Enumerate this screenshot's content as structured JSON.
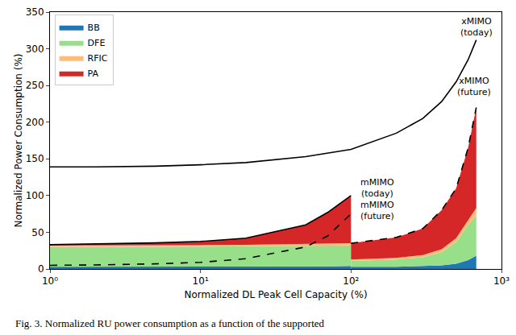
{
  "chart_data": {
    "type": "area",
    "stacked": true,
    "log": "x",
    "grid": false,
    "legend": "upper left",
    "xlabel": "Normalized DL Peak Cell Capacity (%)",
    "ylabel": "Normalized Power Consumption (%)",
    "caption": "Fig. 3. Normalized RU power consumption as a function of the supported",
    "xlim": [
      1,
      1000
    ],
    "ylim": [
      0,
      350
    ],
    "xticks": [
      {
        "value": 1,
        "label": "10⁰"
      },
      {
        "value": 10,
        "label": "10¹"
      },
      {
        "value": 100,
        "label": "10²"
      },
      {
        "value": 1000,
        "label": "10³"
      }
    ],
    "yticks": [
      0,
      50,
      100,
      150,
      200,
      250,
      300,
      350
    ],
    "x": [
      1,
      2,
      5,
      10,
      20,
      50,
      70,
      100,
      100,
      200,
      300,
      400,
      500,
      600,
      680
    ],
    "series": [
      {
        "name": "BB",
        "type": "area",
        "color": "#1f77b4",
        "values": [
          3,
          3,
          3,
          3,
          3,
          3.5,
          3.5,
          4,
          3,
          3,
          4,
          5,
          7,
          12,
          18
        ]
      },
      {
        "name": "DFE",
        "type": "area",
        "color": "#98df8a",
        "values": [
          27,
          27,
          27,
          27.5,
          28,
          28,
          28,
          28,
          8,
          10,
          12,
          18,
          30,
          48,
          55
        ]
      },
      {
        "name": "RFIC",
        "type": "area",
        "color": "#ffbb78",
        "values": [
          2,
          2,
          2,
          2,
          2,
          2.5,
          2.5,
          3,
          2,
          2,
          3,
          4,
          5,
          7,
          10
        ]
      },
      {
        "name": "PA",
        "type": "area",
        "color": "#d62728",
        "values": [
          1,
          2,
          3.5,
          5,
          9,
          26,
          43,
          65,
          22,
          28,
          36,
          53,
          68,
          98,
          137
        ]
      }
    ],
    "lines": [
      {
        "name": "xMIMO (today)",
        "type": "line",
        "color": "#000000",
        "line_style": "solid",
        "x": [
          1,
          2,
          5,
          10,
          20,
          50,
          100,
          200,
          300,
          400,
          500,
          600,
          680
        ],
        "values": [
          139,
          139,
          140,
          142,
          145,
          153,
          163,
          185,
          205,
          228,
          255,
          285,
          312
        ]
      },
      {
        "name": "xMIMO (future)",
        "type": "line",
        "color": "#000000",
        "line_style": "dashed",
        "x": [
          100,
          200,
          300,
          400,
          500,
          600,
          680
        ],
        "values": [
          35,
          43,
          55,
          80,
          110,
          165,
          220
        ]
      },
      {
        "name": "mMIMO (today)",
        "type": "line",
        "color": "#000000",
        "line_style": "solid",
        "x": [
          1,
          2,
          5,
          10,
          20,
          50,
          70,
          100
        ],
        "values": [
          33,
          34,
          35.5,
          37.5,
          42,
          60,
          77,
          100
        ]
      },
      {
        "name": "mMIMO (future)",
        "type": "line",
        "color": "#000000",
        "line_style": "dashed",
        "x": [
          1,
          2,
          5,
          10,
          20,
          50,
          70,
          100
        ],
        "values": [
          5,
          5.5,
          7,
          9,
          14,
          30,
          45,
          75
        ]
      }
    ],
    "annotations": [
      {
        "text": "xMIMO\n(today)",
        "x": 680,
        "y": 330
      },
      {
        "text": "xMIMO\n(future)",
        "x": 660,
        "y": 248
      },
      {
        "text": "mMIMO\n(today)",
        "x": 150,
        "y": 110
      },
      {
        "text": "mMIMO\n(future)",
        "x": 150,
        "y": 80
      }
    ]
  }
}
